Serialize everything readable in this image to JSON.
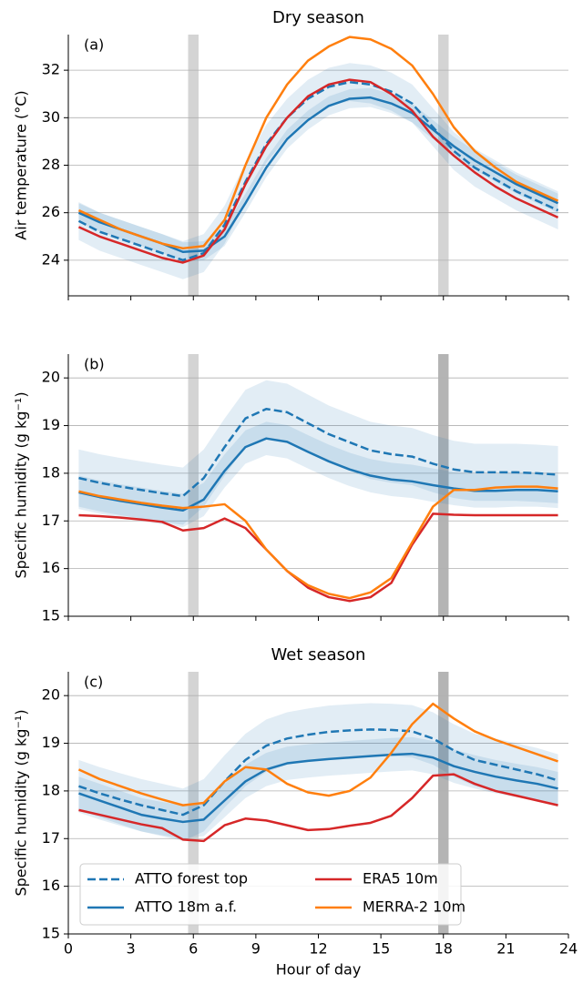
{
  "chart_data": [
    {
      "type": "line",
      "title": "Dry season",
      "annotation": "(a)",
      "y_label": "Air temperature (°C)",
      "x": [
        0.5,
        1.5,
        2.5,
        3.5,
        4.5,
        5.5,
        6.5,
        7.5,
        8.5,
        9.5,
        10.5,
        11.5,
        12.5,
        13.5,
        14.5,
        15.5,
        16.5,
        17.5,
        18.5,
        19.5,
        20.5,
        21.5,
        22.5,
        23.5
      ],
      "xlim": [
        0,
        24
      ],
      "xticks": [
        0,
        3,
        6,
        9,
        12,
        15,
        18,
        21,
        24
      ],
      "show_xtick_labels": false,
      "ylim": [
        22.5,
        33.5
      ],
      "yticks": [
        24,
        26,
        28,
        30,
        32
      ],
      "grid": true,
      "vspans": [
        {
          "x": [
            5.75,
            6.25
          ],
          "color": "#d4d4d4"
        },
        {
          "x": [
            17.75,
            18.25
          ],
          "color": "#d4d4d4"
        }
      ],
      "series": [
        {
          "color": "#1f77b4",
          "dashed": true,
          "values": [
            25.65,
            25.2,
            24.9,
            24.6,
            24.3,
            24.0,
            24.3,
            25.5,
            27.3,
            28.9,
            30.0,
            30.8,
            31.3,
            31.5,
            31.4,
            31.1,
            30.6,
            29.6,
            28.6,
            27.9,
            27.4,
            26.9,
            26.5,
            26.1
          ],
          "band_lower": [
            24.85,
            24.4,
            24.1,
            23.8,
            23.5,
            23.2,
            23.5,
            24.7,
            26.5,
            28.1,
            29.2,
            30.0,
            30.5,
            30.7,
            30.6,
            30.3,
            29.8,
            28.8,
            27.8,
            27.1,
            26.6,
            26.1,
            25.7,
            25.3
          ],
          "band_upper": [
            26.45,
            26.0,
            25.7,
            25.4,
            25.1,
            24.8,
            25.1,
            26.3,
            28.1,
            29.7,
            30.8,
            31.6,
            32.1,
            32.3,
            32.2,
            31.9,
            31.4,
            30.4,
            29.4,
            28.7,
            28.2,
            27.7,
            27.3,
            26.9
          ]
        },
        {
          "color": "#1f77b4",
          "dashed": false,
          "values": [
            26.0,
            25.6,
            25.3,
            25.0,
            24.7,
            24.35,
            24.4,
            25.0,
            26.4,
            27.9,
            29.1,
            29.9,
            30.5,
            30.8,
            30.85,
            30.6,
            30.2,
            29.5,
            28.8,
            28.2,
            27.7,
            27.2,
            26.8,
            26.4
          ],
          "band_lower": [
            25.6,
            25.2,
            24.9,
            24.6,
            24.3,
            23.95,
            24.0,
            24.6,
            26.0,
            27.5,
            28.7,
            29.5,
            30.1,
            30.4,
            30.45,
            30.2,
            29.8,
            29.1,
            28.4,
            27.8,
            27.3,
            26.8,
            26.4,
            26.0
          ],
          "band_upper": [
            26.4,
            26.0,
            25.7,
            25.4,
            25.1,
            24.75,
            24.8,
            25.4,
            26.8,
            28.3,
            29.5,
            30.3,
            30.9,
            31.2,
            31.25,
            31.0,
            30.6,
            29.9,
            29.2,
            28.6,
            28.1,
            27.6,
            27.2,
            26.8
          ]
        },
        {
          "color": "#d62728",
          "dashed": false,
          "values": [
            25.4,
            25.0,
            24.7,
            24.4,
            24.1,
            23.9,
            24.2,
            25.3,
            27.2,
            28.8,
            30.0,
            30.9,
            31.4,
            31.6,
            31.5,
            31.0,
            30.3,
            29.2,
            28.4,
            27.7,
            27.1,
            26.6,
            26.2,
            25.8
          ]
        },
        {
          "color": "#ff7f0e",
          "dashed": false,
          "values": [
            26.1,
            25.7,
            25.3,
            25.0,
            24.7,
            24.5,
            24.6,
            25.7,
            28.0,
            30.0,
            31.4,
            32.4,
            33.0,
            33.4,
            33.3,
            32.9,
            32.2,
            31.0,
            29.6,
            28.6,
            27.9,
            27.3,
            26.9,
            26.5
          ]
        }
      ]
    },
    {
      "type": "line",
      "annotation": "(b)",
      "y_label": "Specific humidity (g kg⁻¹)",
      "x": [
        0.5,
        1.5,
        2.5,
        3.5,
        4.5,
        5.5,
        6.5,
        7.5,
        8.5,
        9.5,
        10.5,
        11.5,
        12.5,
        13.5,
        14.5,
        15.5,
        16.5,
        17.5,
        18.5,
        19.5,
        20.5,
        21.5,
        22.5,
        23.5
      ],
      "xlim": [
        0,
        24
      ],
      "xticks": [
        0,
        3,
        6,
        9,
        12,
        15,
        18,
        21,
        24
      ],
      "show_xtick_labels": false,
      "ylim": [
        15,
        20.5
      ],
      "yticks": [
        15,
        16,
        17,
        18,
        19,
        20
      ],
      "grid": true,
      "vspans": [
        {
          "x": [
            5.75,
            6.25
          ],
          "color": "#d4d4d4"
        },
        {
          "x": [
            17.75,
            18.25
          ],
          "color": "#b4b4b4"
        }
      ],
      "series": [
        {
          "color": "#1f77b4",
          "dashed": true,
          "values": [
            17.9,
            17.8,
            17.72,
            17.65,
            17.58,
            17.52,
            17.9,
            18.55,
            19.15,
            19.35,
            19.28,
            19.05,
            18.82,
            18.65,
            18.48,
            18.4,
            18.35,
            18.2,
            18.08,
            18.02,
            18.02,
            18.02,
            18.0,
            17.97
          ],
          "band_lower": [
            17.3,
            17.2,
            17.12,
            17.05,
            16.98,
            16.92,
            17.3,
            17.95,
            18.55,
            18.75,
            18.68,
            18.45,
            18.22,
            18.05,
            17.88,
            17.8,
            17.75,
            17.6,
            17.48,
            17.42,
            17.42,
            17.42,
            17.4,
            17.37
          ],
          "band_upper": [
            18.5,
            18.4,
            18.32,
            18.25,
            18.18,
            18.12,
            18.5,
            19.15,
            19.75,
            19.95,
            19.88,
            19.65,
            19.42,
            19.25,
            19.08,
            19.0,
            18.95,
            18.8,
            18.68,
            18.62,
            18.62,
            18.62,
            18.6,
            18.57
          ]
        },
        {
          "color": "#1f77b4",
          "dashed": false,
          "values": [
            17.6,
            17.5,
            17.42,
            17.35,
            17.28,
            17.22,
            17.45,
            18.05,
            18.55,
            18.73,
            18.66,
            18.45,
            18.25,
            18.08,
            17.95,
            17.87,
            17.83,
            17.75,
            17.68,
            17.63,
            17.63,
            17.65,
            17.65,
            17.62
          ],
          "band_lower": [
            17.25,
            17.15,
            17.07,
            17.0,
            16.93,
            16.87,
            17.1,
            17.7,
            18.2,
            18.38,
            18.31,
            18.1,
            17.9,
            17.73,
            17.6,
            17.52,
            17.48,
            17.4,
            17.33,
            17.28,
            17.28,
            17.3,
            17.3,
            17.27
          ],
          "band_upper": [
            17.95,
            17.85,
            17.77,
            17.7,
            17.63,
            17.57,
            17.8,
            18.4,
            18.9,
            19.08,
            19.01,
            18.8,
            18.6,
            18.43,
            18.3,
            18.22,
            18.18,
            18.1,
            18.03,
            17.98,
            17.98,
            18.0,
            18.0,
            17.97
          ]
        },
        {
          "color": "#d62728",
          "dashed": false,
          "values": [
            17.12,
            17.1,
            17.07,
            17.03,
            16.98,
            16.8,
            16.85,
            17.05,
            16.85,
            16.4,
            15.95,
            15.6,
            15.4,
            15.32,
            15.4,
            15.7,
            16.5,
            17.15,
            17.13,
            17.12,
            17.12,
            17.12,
            17.12,
            17.12
          ]
        },
        {
          "color": "#ff7f0e",
          "dashed": false,
          "values": [
            17.62,
            17.52,
            17.45,
            17.38,
            17.32,
            17.27,
            17.3,
            17.35,
            17.0,
            16.4,
            15.95,
            15.65,
            15.47,
            15.38,
            15.5,
            15.8,
            16.55,
            17.3,
            17.65,
            17.65,
            17.7,
            17.72,
            17.72,
            17.68
          ]
        }
      ]
    },
    {
      "type": "line",
      "title": "Wet season",
      "annotation": "(c)",
      "y_label": "Specific humidity (g kg⁻¹)",
      "x_label": "Hour of day",
      "x": [
        0.5,
        1.5,
        2.5,
        3.5,
        4.5,
        5.5,
        6.5,
        7.5,
        8.5,
        9.5,
        10.5,
        11.5,
        12.5,
        13.5,
        14.5,
        15.5,
        16.5,
        17.5,
        18.5,
        19.5,
        20.5,
        21.5,
        22.5,
        23.5
      ],
      "xlim": [
        0,
        24
      ],
      "xticks": [
        0,
        3,
        6,
        9,
        12,
        15,
        18,
        21,
        24
      ],
      "show_xtick_labels": true,
      "ylim": [
        15,
        20.5
      ],
      "yticks": [
        15,
        16,
        17,
        18,
        19,
        20
      ],
      "grid": true,
      "legend": "lower left",
      "vspans": [
        {
          "x": [
            5.75,
            6.25
          ],
          "color": "#d4d4d4"
        },
        {
          "x": [
            17.75,
            18.25
          ],
          "color": "#b4b4b4"
        }
      ],
      "series": [
        {
          "name": "ATTO forest top",
          "color": "#1f77b4",
          "dashed": true,
          "values": [
            18.1,
            17.95,
            17.82,
            17.7,
            17.6,
            17.5,
            17.7,
            18.2,
            18.65,
            18.95,
            19.1,
            19.18,
            19.24,
            19.27,
            19.29,
            19.28,
            19.25,
            19.1,
            18.85,
            18.65,
            18.55,
            18.45,
            18.35,
            18.22
          ],
          "band_lower": [
            17.55,
            17.4,
            17.27,
            17.15,
            17.05,
            16.95,
            17.15,
            17.65,
            18.1,
            18.4,
            18.55,
            18.63,
            18.69,
            18.72,
            18.74,
            18.73,
            18.7,
            18.55,
            18.3,
            18.1,
            18.0,
            17.9,
            17.8,
            17.67
          ],
          "band_upper": [
            18.65,
            18.5,
            18.37,
            18.25,
            18.15,
            18.05,
            18.25,
            18.75,
            19.2,
            19.5,
            19.65,
            19.73,
            19.79,
            19.82,
            19.84,
            19.83,
            19.8,
            19.65,
            19.4,
            19.2,
            19.1,
            19.0,
            18.9,
            18.77
          ]
        },
        {
          "name": "ATTO 18m a.f.",
          "color": "#1f77b4",
          "dashed": false,
          "values": [
            17.95,
            17.8,
            17.65,
            17.5,
            17.42,
            17.35,
            17.4,
            17.8,
            18.2,
            18.45,
            18.58,
            18.63,
            18.67,
            18.7,
            18.73,
            18.76,
            18.78,
            18.7,
            18.52,
            18.4,
            18.3,
            18.22,
            18.15,
            18.05
          ],
          "band_lower": [
            17.6,
            17.45,
            17.3,
            17.15,
            17.07,
            17.0,
            17.05,
            17.45,
            17.85,
            18.1,
            18.23,
            18.28,
            18.32,
            18.35,
            18.38,
            18.41,
            18.43,
            18.35,
            18.17,
            18.05,
            17.95,
            17.87,
            17.8,
            17.7
          ],
          "band_upper": [
            18.3,
            18.15,
            18.0,
            17.85,
            17.77,
            17.7,
            17.75,
            18.15,
            18.55,
            18.8,
            18.93,
            18.98,
            19.02,
            19.05,
            19.08,
            19.11,
            19.13,
            19.05,
            18.87,
            18.75,
            18.65,
            18.57,
            18.5,
            18.4
          ]
        },
        {
          "name": "ERA5 10m",
          "color": "#d62728",
          "dashed": false,
          "values": [
            17.6,
            17.5,
            17.4,
            17.3,
            17.22,
            16.98,
            16.95,
            17.28,
            17.42,
            17.38,
            17.28,
            17.18,
            17.2,
            17.27,
            17.33,
            17.48,
            17.85,
            18.32,
            18.35,
            18.15,
            18.0,
            17.9,
            17.8,
            17.7
          ]
        },
        {
          "name": "MERRA-2 10m",
          "color": "#ff7f0e",
          "dashed": false,
          "values": [
            18.45,
            18.25,
            18.1,
            17.95,
            17.82,
            17.7,
            17.75,
            18.2,
            18.5,
            18.45,
            18.15,
            17.97,
            17.9,
            18.0,
            18.28,
            18.8,
            19.4,
            19.83,
            19.52,
            19.25,
            19.07,
            18.92,
            18.77,
            18.62
          ]
        }
      ]
    }
  ]
}
